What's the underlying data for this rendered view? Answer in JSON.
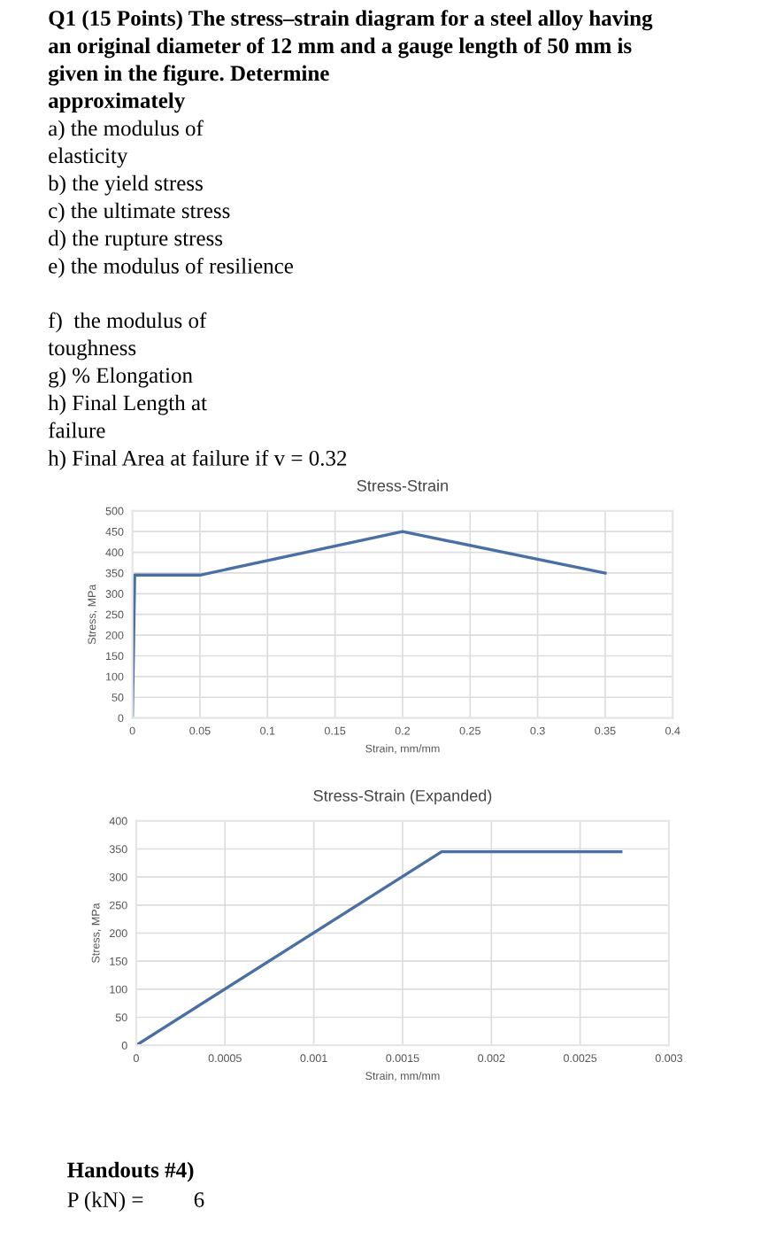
{
  "chart_data": [
    {
      "type": "line",
      "title": "Stress-Strain",
      "xlabel": "Strain, mm/mm",
      "ylabel": "Stress, MPa",
      "x": [
        0,
        0.0017,
        0.05,
        0.2,
        0.35
      ],
      "series": [
        {
          "color": "#4a6fa5",
          "values": [
            0,
            345,
            345,
            450,
            350
          ]
        }
      ],
      "xlim": [
        0,
        0.4
      ],
      "xticks": [
        0,
        0.05,
        0.1,
        0.15,
        0.2,
        0.25,
        0.3,
        0.35,
        0.4
      ],
      "ylim": [
        0,
        500
      ],
      "yticks": [
        0,
        50,
        100,
        150,
        200,
        250,
        300,
        350,
        400,
        450,
        500
      ],
      "grid": true,
      "marker": "none",
      "line_style": "solid",
      "annotations": [
        "Q1 (15 Points) The stress–strain diagram for a steel alloy having",
        "an original diameter of 12 mm and a gauge length of 50 mm is",
        "given in the figure. Determine",
        "approximately",
        "a) the modulus of",
        "elasticity",
        "b) the yield stress",
        "c) the ultimate stress",
        "d) the rupture stress",
        "e) the modulus of resilience",
        "f)  the modulus of",
        "toughness",
        "g) % Elongation",
        "h) Final Length at",
        "failure",
        "h) Final Area at failure if v = 0.32"
      ]
    },
    {
      "type": "line",
      "title": "Stress-Strain (Expanded)",
      "xlabel": "Strain, mm/mm",
      "ylabel": "Stress, MPa",
      "x": [
        0,
        0.00172,
        0.00273
      ],
      "series": [
        {
          "color": "#4a6fa5",
          "values": [
            0,
            345,
            345
          ]
        }
      ],
      "xlim": [
        0,
        0.003
      ],
      "xticks": [
        0,
        0.0005,
        0.001,
        0.0015,
        0.002,
        0.0025,
        0.003
      ],
      "ylim": [
        0,
        400
      ],
      "yticks": [
        0,
        50,
        100,
        150,
        200,
        250,
        300,
        350,
        400
      ],
      "grid": true,
      "marker": "none",
      "line_style": "solid",
      "annotations": [
        "Handouts #4)",
        "P (kN) =         6"
      ]
    }
  ]
}
